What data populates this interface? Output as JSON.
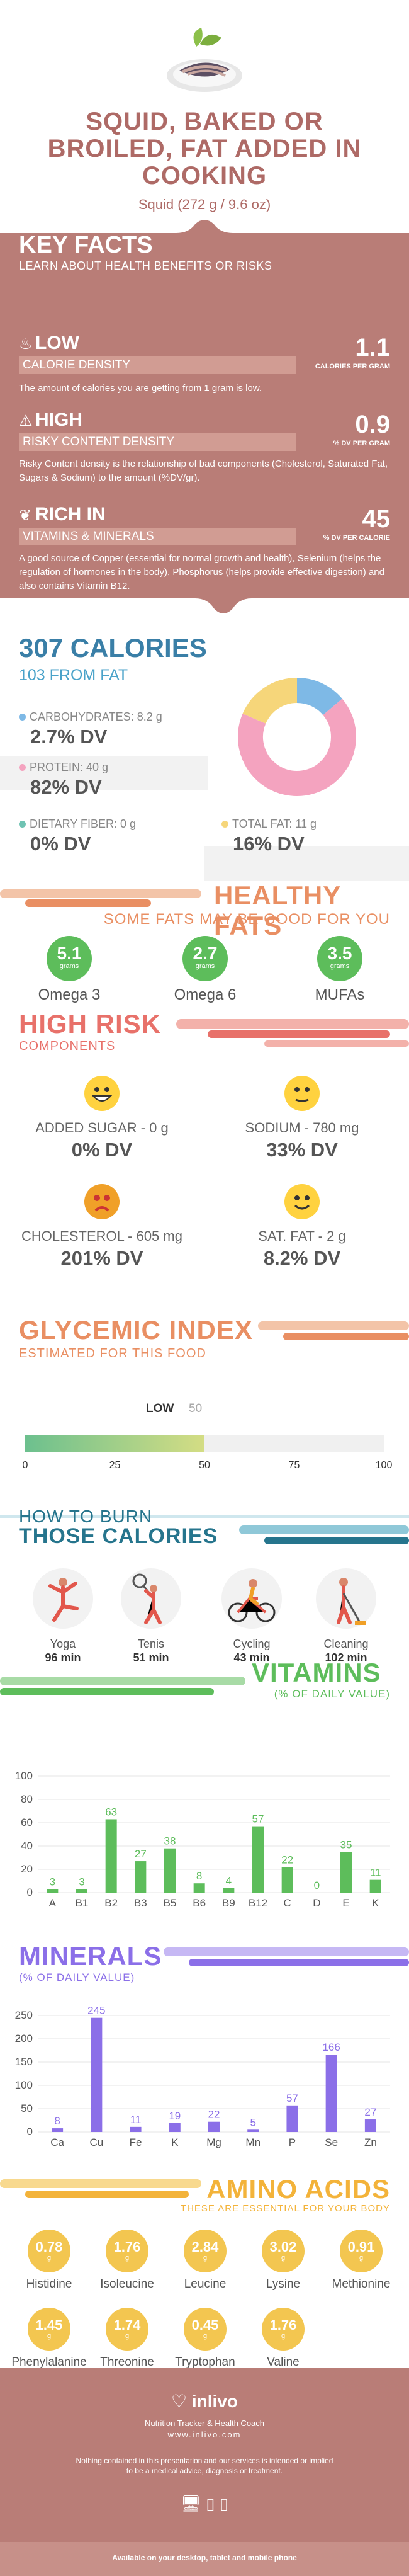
{
  "header": {
    "title_lines": [
      "SQUID, BAKED OR",
      "BROILED, FAT ADDED IN",
      "COOKING"
    ],
    "serving": "Squid (272 g / 9.6 oz)"
  },
  "key_facts": {
    "title": "KEY FACTS",
    "subtitle": "LEARN ABOUT HEALTH BENEFITS OR RISKS",
    "facts": [
      {
        "heading": "LOW",
        "box": "CALORIE DENSITY",
        "desc": "The amount of calories you are getting from 1 gram is low.",
        "value": "1.1",
        "unit": "CALORIES PER GRAM",
        "icon": "flame-icon"
      },
      {
        "heading": "HIGH",
        "box": "RISKY CONTENT DENSITY",
        "desc": "Risky Content density is the relationship of bad components (Cholesterol, Saturated Fat, Sugars & Sodium) to the amount (%DV/gr).",
        "value": "0.9",
        "unit": "% DV PER GRAM",
        "icon": "warning-icon"
      },
      {
        "heading": "RICH  IN",
        "box": "VITAMINS & MINERALS",
        "desc": "A good source of Copper (essential for normal growth and health), Selenium (helps the regulation of hormones in the body), Phosphorus (helps provide effective digestion) and also contains Vitamin B12.",
        "value": "45",
        "unit": "% DV PER CALORIE",
        "icon": "leaf-icon"
      }
    ]
  },
  "calories": {
    "title": "307 CALORIES",
    "from_fat": "103 FROM FAT",
    "items": [
      {
        "label": "CARBOHYDRATES: 8.2 g",
        "dv": "2.7% DV",
        "color": "#7eb9e6"
      },
      {
        "label": "PROTEIN: 40 g",
        "dv": "82% DV",
        "color": "#f4a3bf"
      },
      {
        "label": "DIETARY FIBER: 0 g",
        "dv": "0% DV",
        "color": "#6fc3b3"
      },
      {
        "label": "TOTAL FAT: 11 g",
        "dv": "16% DV",
        "color": "#f6d67a"
      }
    ]
  },
  "healthy_fats": {
    "title": "HEALTHY FATS",
    "subtitle": "SOME FATS MAY BE GOOD FOR YOU",
    "unit": "grams",
    "items": [
      {
        "value": "5.1",
        "label": "Omega 3"
      },
      {
        "value": "2.7",
        "label": "Omega 6"
      },
      {
        "value": "3.5",
        "label": "MUFAs"
      }
    ]
  },
  "high_risk": {
    "title": "HIGH RISK",
    "subtitle": "COMPONENTS",
    "items": [
      {
        "label": "ADDED SUGAR - 0 g",
        "dv": "0% DV",
        "face": "happy-face-icon"
      },
      {
        "label": "SODIUM - 780 mg",
        "dv": "33% DV",
        "face": "neutral-face-icon"
      },
      {
        "label": "CHOLESTEROL - 605 mg",
        "dv": "201% DV",
        "face": "sad-face-icon"
      },
      {
        "label": "SAT. FAT - 2 g",
        "dv": "8.2% DV",
        "face": "smile-face-icon"
      }
    ]
  },
  "glycemic": {
    "title": "GLYCEMIC INDEX",
    "subtitle": "ESTIMATED FOR THIS FOOD",
    "level": "LOW",
    "value": 50,
    "value_label": "50",
    "max": 100,
    "ticks": [
      "0",
      "25",
      "50",
      "75",
      "100"
    ]
  },
  "burn": {
    "title_line1": "HOW TO BURN",
    "title_line2": "THOSE CALORIES",
    "items": [
      {
        "label": "Yoga",
        "time": "96 min",
        "icon": "yoga-icon"
      },
      {
        "label": "Tenis",
        "time": "51 min",
        "icon": "tennis-icon"
      },
      {
        "label": "Cycling",
        "time": "43 min",
        "icon": "cycling-icon"
      },
      {
        "label": "Cleaning",
        "time": "102 min",
        "icon": "cleaning-icon"
      }
    ]
  },
  "chart_data": [
    {
      "type": "bar",
      "title": "VITAMINS",
      "subtitle": "(% OF DAILY VALUE)",
      "categories": [
        "A",
        "B1",
        "B2",
        "B3",
        "B5",
        "B6",
        "B9",
        "B12",
        "C",
        "D",
        "E",
        "K"
      ],
      "values": [
        3,
        3,
        63,
        27,
        38,
        8,
        4,
        57,
        22,
        0,
        35,
        11
      ],
      "labels": [
        "3",
        "3",
        "63",
        "27",
        "38",
        "8",
        "4",
        "57",
        "22",
        "0",
        "35",
        "11"
      ],
      "yticks": [
        "0",
        "20",
        "40",
        "60",
        "80",
        "100"
      ],
      "ylim": [
        0,
        100
      ],
      "color": "#5dbd5b",
      "label_color": "#5dbd5b"
    },
    {
      "type": "bar",
      "title": "MINERALS",
      "subtitle": "(% OF DAILY VALUE)",
      "categories": [
        "Ca",
        "Cu",
        "Fe",
        "K",
        "Mg",
        "Mn",
        "P",
        "Se",
        "Zn"
      ],
      "values": [
        8,
        245,
        11,
        19,
        22,
        5,
        57,
        166,
        27
      ],
      "labels": [
        "8",
        "245",
        "11",
        "19",
        "22",
        "5",
        "57",
        "166",
        "27"
      ],
      "yticks": [
        "0",
        "50",
        "100",
        "150",
        "200",
        "250"
      ],
      "ylim": [
        0,
        250
      ],
      "color": "#8b6fe8",
      "label_color": "#8b6fe8"
    }
  ],
  "amino": {
    "title": "AMINO ACIDS",
    "subtitle": "THESE ARE ESSENTIAL FOR YOUR BODY",
    "unit": "g",
    "items": [
      {
        "value": "0.78",
        "label": "Histidine"
      },
      {
        "value": "1.76",
        "label": "Isoleucine"
      },
      {
        "value": "2.84",
        "label": "Leucine"
      },
      {
        "value": "3.02",
        "label": "Lysine"
      },
      {
        "value": "0.91",
        "label": "Methionine"
      },
      {
        "value": "1.45",
        "label": "Phenylalanine"
      },
      {
        "value": "1.74",
        "label": "Threonine"
      },
      {
        "value": "0.45",
        "label": "Tryptophan"
      },
      {
        "value": "1.76",
        "label": "Valine"
      }
    ]
  },
  "footer": {
    "brand": "inlivo",
    "tagline": "Nutrition Tracker & Health Coach",
    "url": "www.inlivo.com",
    "disclaimer_1": "Nothing contained in this presentation and our services is intended or implied",
    "disclaimer_2": "to be a medical advice, diagnosis or treatment.",
    "available": "Available on your desktop, tablet and mobile phone"
  },
  "colors": {
    "brown": "#ae6a66",
    "blue": "#3a7fa7",
    "orange": "#e98f63",
    "coral": "#e8716a",
    "teal": "#26758d",
    "green": "#5dbd5b",
    "purple": "#8b6fe8",
    "amber": "#f3b33a"
  }
}
